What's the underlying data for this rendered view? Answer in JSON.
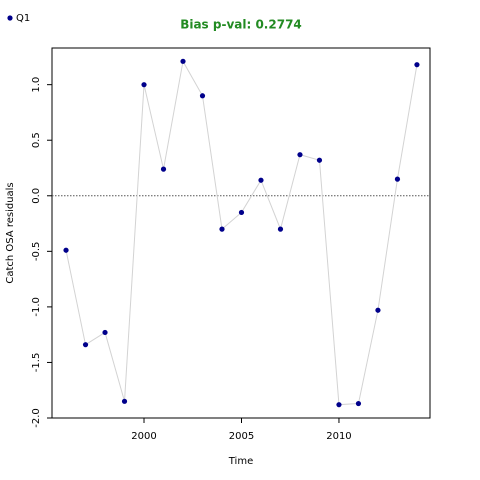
{
  "chart_data": {
    "type": "line",
    "title": "Bias p-val: 0.2774",
    "title_color": "#228b22",
    "xlabel": "Time",
    "ylabel": "Catch OSA residuals",
    "x": [
      1996,
      1997,
      1998,
      1999,
      2000,
      2001,
      2002,
      2003,
      2004,
      2005,
      2006,
      2007,
      2008,
      2009,
      2010,
      2011,
      2012,
      2013,
      2014
    ],
    "series": [
      {
        "name": "Q1",
        "color": "#00008b",
        "line_color": "#d3d3d3",
        "values": [
          -0.49,
          -1.34,
          -1.23,
          -1.85,
          1.0,
          0.24,
          1.21,
          0.9,
          -0.3,
          -0.15,
          0.14,
          -0.3,
          0.37,
          0.32,
          -1.88,
          -1.87,
          -1.03,
          0.15,
          1.18
        ]
      }
    ],
    "xlim": [
      1995.28,
      2014.67
    ],
    "xticks": [
      2000,
      2005,
      2010
    ],
    "ylim": [
      -2.0,
      1.33
    ],
    "yticks": [
      {
        "value": -2,
        "label": "-2.0"
      },
      -1.5,
      {
        "value": -1,
        "label": "-1.0"
      },
      -0.5,
      {
        "value": 0,
        "label": "0.0"
      },
      0.5,
      {
        "value": 1,
        "label": "1.0"
      }
    ],
    "reference_line": 0,
    "legend": "top-left"
  }
}
